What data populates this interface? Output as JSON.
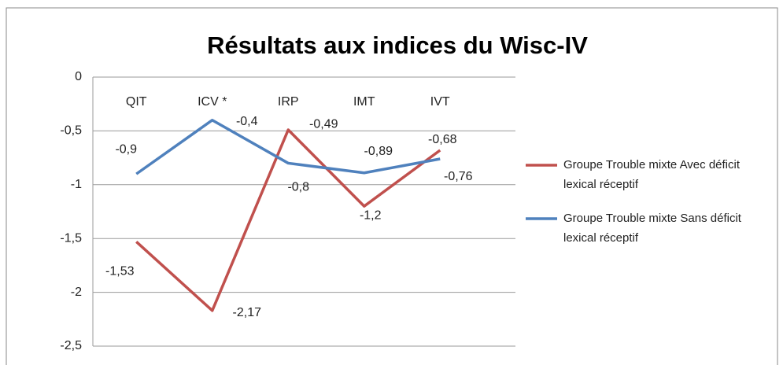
{
  "chart_data": {
    "type": "line",
    "title": "Résultats aux indices du Wisc-IV",
    "categories": [
      "QIT",
      "ICV *",
      "IRP",
      "IMT",
      "IVT"
    ],
    "series": [
      {
        "name": "Groupe Trouble mixte Avec déficit lexical réceptif",
        "color": "#c0504d",
        "values": [
          -1.53,
          -2.17,
          -0.49,
          -1.2,
          -0.68
        ],
        "value_labels": [
          "-1,53",
          "-2,17",
          "-0,49",
          "-1,2",
          "-0,68"
        ]
      },
      {
        "name": "Groupe Trouble mixte Sans déficit lexical réceptif",
        "color": "#4f81bd",
        "values": [
          -0.9,
          -0.4,
          -0.8,
          -0.89,
          -0.76
        ],
        "value_labels": [
          "-0,9",
          "-0,4",
          "-0,8",
          "-0,89",
          "-0,76"
        ]
      }
    ],
    "ylim": [
      -2.5,
      0
    ],
    "yticks": [
      0,
      {
        "value": -0.5,
        "label": "-0,5"
      },
      -1,
      {
        "value": -1.5,
        "label": "-1,5"
      },
      -2,
      {
        "value": -2.5,
        "label": "-2,5"
      }
    ],
    "grid": true,
    "legend": "right"
  }
}
